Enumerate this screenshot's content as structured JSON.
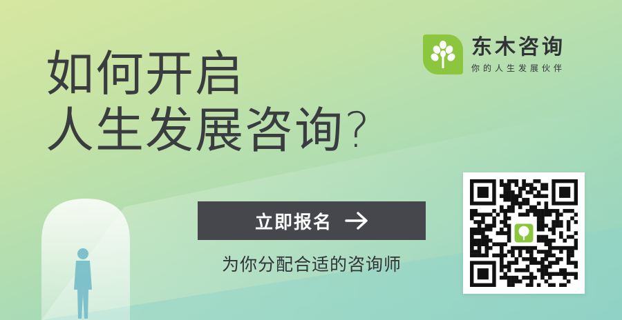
{
  "headline": {
    "line1": "如何开启",
    "line2": "人生发展咨询?"
  },
  "cta": {
    "label": "立即报名",
    "icon": "arrow-right-icon"
  },
  "subtitle": "为你分配合适的咨询师",
  "brand": {
    "name": "东木咨询",
    "slogan": "你的人生发展伙伴",
    "logo_icon": "tree-icon",
    "logo_color": "#8cc63f"
  },
  "qr": {
    "icon": "qr-code-icon",
    "center_icon": "tree-icon"
  },
  "colors": {
    "button_bg": "#45474d",
    "text": "#3a3d40",
    "accent": "#8cc63f"
  }
}
